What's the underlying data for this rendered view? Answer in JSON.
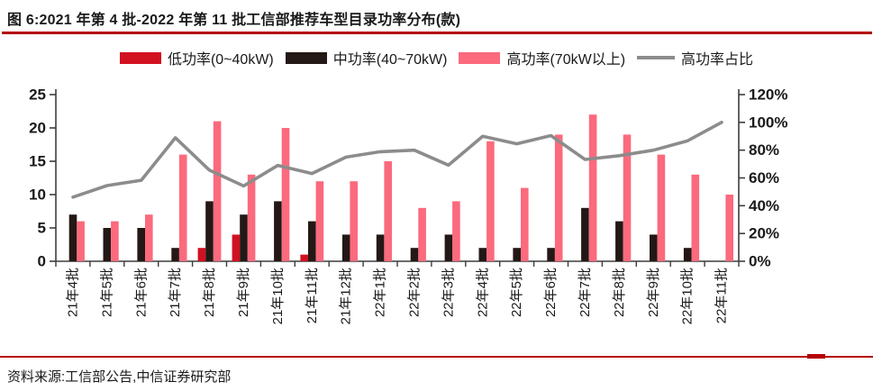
{
  "header": {
    "title": "图 6:2021 年第 4 批-2022 年第 11 批工信部推荐车型目录功率分布(款)"
  },
  "footer": {
    "source": "资料来源:工信部公告,中信证券研究部"
  },
  "colors": {
    "accent_rule": "#b40000",
    "low": "#d21120",
    "mid": "#231815",
    "high": "#fb6a7d",
    "ratio_line": "#8c8c8c",
    "axis": "#3d3d3d",
    "text": "#1a1a1a"
  },
  "chart_data": {
    "type": "bar",
    "title": "2021年第4批-2022年第11批工信部推荐车型目录功率分布(款)",
    "categories": [
      "21年4批",
      "21年5批",
      "21年6批",
      "21年7批",
      "21年8批",
      "21年9批",
      "21年10批",
      "21年11批",
      "21年12批",
      "22年1批",
      "22年2批",
      "22年3批",
      "22年4批",
      "22年5批",
      "22年6批",
      "22年7批",
      "22年8批",
      "22年9批",
      "22年10批",
      "22年11批"
    ],
    "series": [
      {
        "name": "低功率(0~40kW)",
        "type": "bar",
        "axis": "left",
        "color_key": "low",
        "values": [
          0,
          0,
          0,
          0,
          2,
          4,
          0,
          1,
          0,
          0,
          0,
          0,
          0,
          0,
          0,
          0,
          0,
          0,
          0,
          0
        ]
      },
      {
        "name": "中功率(40~70kW)",
        "type": "bar",
        "axis": "left",
        "color_key": "mid",
        "values": [
          7,
          5,
          5,
          2,
          9,
          7,
          9,
          6,
          4,
          4,
          2,
          4,
          2,
          2,
          2,
          8,
          6,
          4,
          2,
          0
        ]
      },
      {
        "name": "高功率(70kW以上)",
        "type": "bar",
        "axis": "left",
        "color_key": "high",
        "values": [
          6,
          6,
          7,
          16,
          21,
          13,
          20,
          12,
          12,
          15,
          8,
          9,
          18,
          11,
          19,
          22,
          19,
          16,
          13,
          10
        ]
      },
      {
        "name": "高功率占比",
        "type": "line",
        "axis": "right",
        "color_key": "ratio_line",
        "values_pct": [
          46.2,
          54.5,
          58.3,
          88.9,
          65.6,
          54.2,
          69.0,
          63.2,
          75.0,
          78.9,
          80.0,
          69.2,
          90.0,
          84.6,
          90.5,
          73.3,
          76.0,
          80.0,
          86.7,
          100.0
        ]
      }
    ],
    "left_axis": {
      "min": 0,
      "max": 25,
      "ticks": [
        0,
        5,
        10,
        15,
        20,
        25
      ]
    },
    "right_axis": {
      "min": 0,
      "max": 120,
      "ticks": [
        0,
        20,
        40,
        60,
        80,
        100,
        120
      ],
      "suffix": "%"
    },
    "legend_position": "top",
    "grid": false
  }
}
